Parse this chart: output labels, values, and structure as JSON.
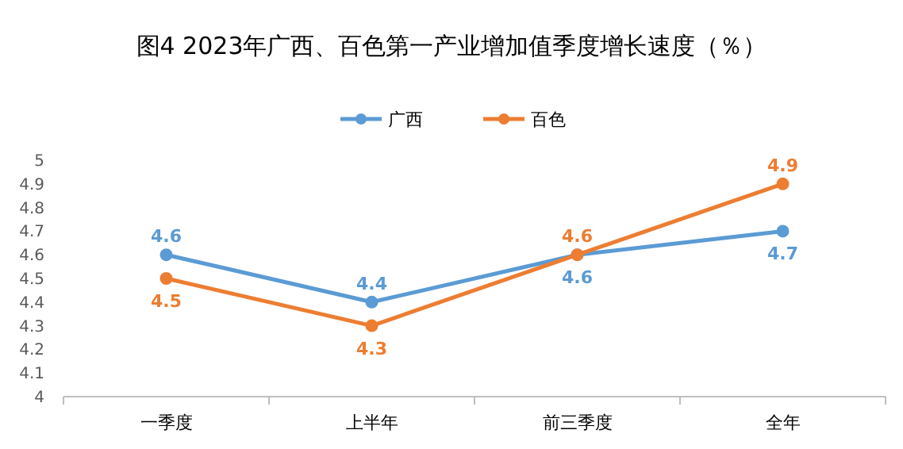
{
  "chart_data": {
    "type": "line",
    "title": "图4  2023年广西、百色第一产业增加值季度增长速度（％）",
    "categories": [
      "一季度",
      "上半年",
      "前三季度",
      "全年"
    ],
    "series": [
      {
        "name": "广西",
        "color": "#5b9bd5",
        "values": [
          4.6,
          4.4,
          4.6,
          4.7
        ]
      },
      {
        "name": "百色",
        "color": "#ed7d31",
        "values": [
          4.5,
          4.3,
          4.6,
          4.9
        ]
      }
    ],
    "ylim": [
      4,
      5
    ],
    "yticks": [
      4,
      4.1,
      4.2,
      4.3,
      4.4,
      4.5,
      4.6,
      4.7,
      4.8,
      4.9,
      5
    ],
    "grid": false,
    "legend": "top",
    "marker": "circle",
    "line_style": "solid",
    "data_labels": true
  }
}
